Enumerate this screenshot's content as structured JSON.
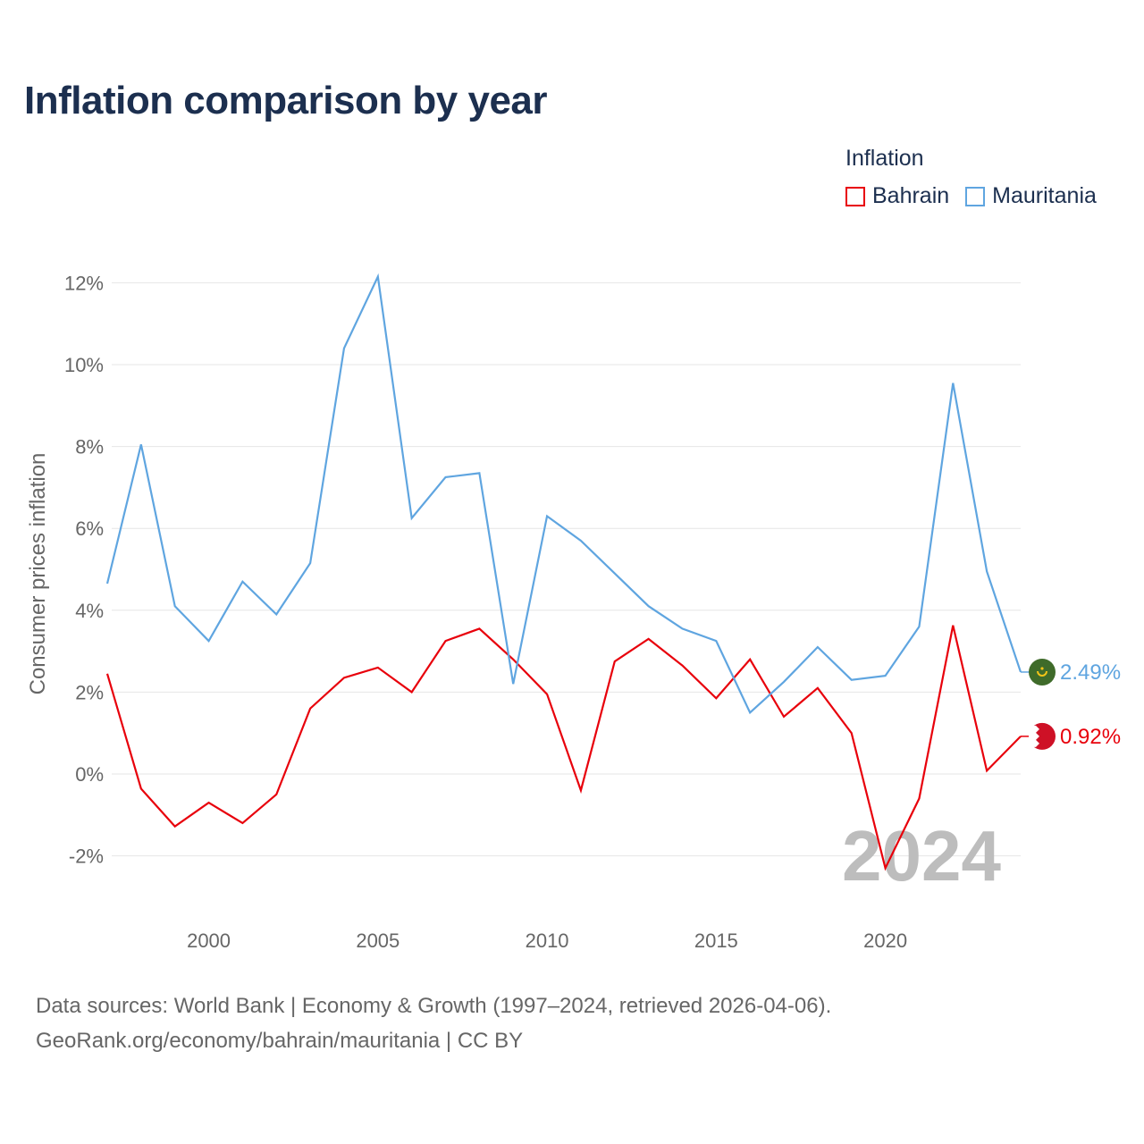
{
  "chart_data": {
    "type": "line",
    "title": "Inflation comparison by year",
    "legend_title": "Inflation",
    "ylabel": "Consumer prices inflation",
    "xlabel": "",
    "x": [
      1997,
      1998,
      1999,
      2000,
      2001,
      2002,
      2003,
      2004,
      2005,
      2006,
      2007,
      2008,
      2009,
      2010,
      2011,
      2012,
      2013,
      2014,
      2015,
      2016,
      2017,
      2018,
      2019,
      2020,
      2021,
      2022,
      2023,
      2024
    ],
    "xlim": [
      1997,
      2024
    ],
    "ylim": [
      -3,
      12.5
    ],
    "x_ticks": [
      2000,
      2005,
      2010,
      2015,
      2020
    ],
    "x_tick_labels": [
      "2000",
      "2005",
      "2010",
      "2015",
      "2020"
    ],
    "y_ticks": [
      -2,
      0,
      2,
      4,
      6,
      8,
      10,
      12
    ],
    "y_tick_labels": [
      "-2%",
      "0%",
      "2%",
      "4%",
      "6%",
      "8%",
      "10%",
      "12%"
    ],
    "year_watermark": "2024",
    "series": [
      {
        "name": "Bahrain",
        "color": "#e8000b",
        "end_label": "0.92%",
        "flag_icon": "bahrain-flag-icon",
        "values": [
          2.45,
          -0.36,
          -1.28,
          -0.7,
          -1.2,
          -0.5,
          1.6,
          2.35,
          2.6,
          2.0,
          3.25,
          3.55,
          2.8,
          1.95,
          -0.4,
          2.75,
          3.3,
          2.65,
          1.85,
          2.8,
          1.4,
          2.1,
          1.0,
          -2.3,
          -0.6,
          3.63,
          0.08,
          0.92
        ]
      },
      {
        "name": "Mauritania",
        "color": "#5fa5e0",
        "end_label": "2.49%",
        "flag_icon": "mauritania-flag-icon",
        "values": [
          4.65,
          8.05,
          4.1,
          3.25,
          4.7,
          3.9,
          5.15,
          10.4,
          12.15,
          6.25,
          7.25,
          7.35,
          2.2,
          6.3,
          5.7,
          4.9,
          4.1,
          3.55,
          3.25,
          1.5,
          2.25,
          3.1,
          2.3,
          2.4,
          3.6,
          9.55,
          4.95,
          2.49
        ]
      }
    ]
  },
  "sources": {
    "line1": "Data sources: World Bank | Economy & Growth (1997–2024, retrieved 2026-04-06).",
    "line2": "GeoRank.org/economy/bahrain/mauritania | CC BY"
  }
}
